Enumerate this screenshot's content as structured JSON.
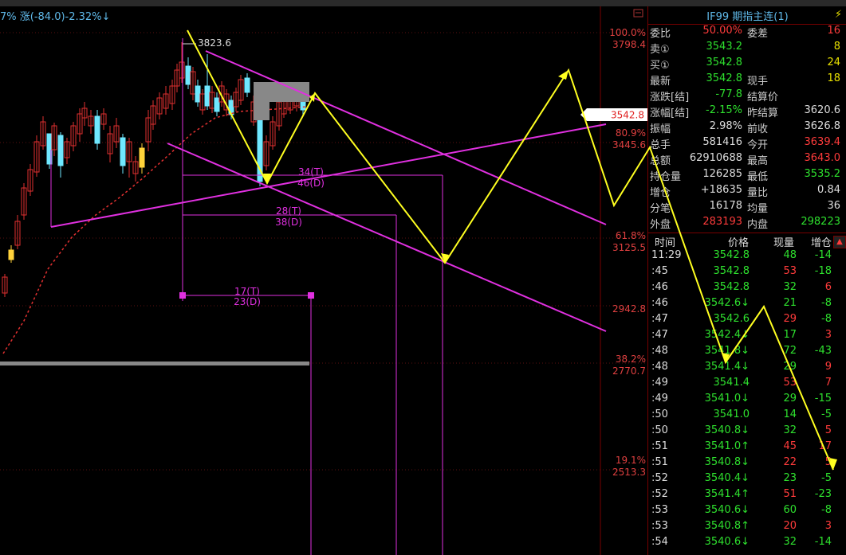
{
  "header": {
    "text": "7% 涨(-84.0)-2.32%↓"
  },
  "chart": {
    "high_label": "3823.6",
    "current_price_tag": "3542.8",
    "axis": [
      {
        "pct": "100.0%",
        "price": "3798.4"
      },
      {
        "pct": "80.9%",
        "price": "3445.6"
      },
      {
        "pct": "61.8%",
        "price": "3125.5"
      },
      {
        "pct": "",
        "price": "2942.8"
      },
      {
        "pct": "38.2%",
        "price": "2770.7"
      },
      {
        "pct": "19.1%",
        "price": "2513.3"
      }
    ],
    "cycles": [
      {
        "t": "34(T)",
        "d": "46(D)"
      },
      {
        "t": "28(T)",
        "d": "38(D)"
      },
      {
        "t": "17(T)",
        "d": "23(D)"
      }
    ]
  },
  "quote": {
    "title": "IF99 期指主连(1)",
    "rows": [
      {
        "l1": "委比",
        "v1": "50.00%",
        "c1": "red",
        "l2": "委差",
        "v2": "16",
        "c2": "red"
      },
      {
        "l1": "卖①",
        "v1": "3543.2",
        "c1": "green",
        "l2": "",
        "v2": "8",
        "c2": "yel"
      },
      {
        "l1": "买①",
        "v1": "3542.8",
        "c1": "green",
        "l2": "",
        "v2": "24",
        "c2": "yel"
      },
      {
        "l1": "最新",
        "v1": "3542.8",
        "c1": "green",
        "l2": "现手",
        "v2": "18",
        "c2": "yel"
      },
      {
        "l1": "涨跌[结]",
        "v1": "-77.8",
        "c1": "green",
        "l2": "结算价",
        "v2": "",
        "c2": "white"
      },
      {
        "l1": "涨幅[结]",
        "v1": "-2.15%",
        "c1": "green",
        "l2": "昨结算",
        "v2": "3620.6",
        "c2": "white"
      },
      {
        "l1": "振幅",
        "v1": "2.98%",
        "c1": "white",
        "l2": "前收",
        "v2": "3626.8",
        "c2": "white"
      },
      {
        "l1": "总手",
        "v1": "581416",
        "c1": "white",
        "l2": "今开",
        "v2": "3639.4",
        "c2": "red"
      },
      {
        "l1": "总额",
        "v1": "62910688",
        "c1": "white",
        "l2": "最高",
        "v2": "3643.0",
        "c2": "red"
      },
      {
        "l1": "持仓量",
        "v1": "126285",
        "c1": "white",
        "l2": "最低",
        "v2": "3535.2",
        "c2": "green"
      },
      {
        "l1": "增仓",
        "v1": "+18635",
        "c1": "white",
        "l2": "量比",
        "v2": "0.84",
        "c2": "white"
      },
      {
        "l1": "分笔",
        "v1": "16178",
        "c1": "white",
        "l2": "均量",
        "v2": "36",
        "c2": "white"
      },
      {
        "l1": "外盘",
        "v1": "283193",
        "c1": "red",
        "l2": "内盘",
        "v2": "298223",
        "c2": "green"
      }
    ]
  },
  "ticks": {
    "headers": {
      "time": "时间",
      "price": "价格",
      "vol": "现量",
      "oi": "增仓"
    },
    "rows": [
      {
        "time": "11:29",
        "price": "3542.8",
        "pc": "green",
        "vol": "48",
        "vc": "green",
        "oi": "-14",
        "oc": "green"
      },
      {
        "time": ":45",
        "price": "3542.8",
        "pc": "green",
        "vol": "53",
        "vc": "red",
        "oi": "-18",
        "oc": "green"
      },
      {
        "time": ":46",
        "price": "3542.8",
        "pc": "green",
        "vol": "32",
        "vc": "green",
        "oi": "6",
        "oc": "red"
      },
      {
        "time": ":46",
        "price": "3542.6↓",
        "pc": "green",
        "vol": "21",
        "vc": "green",
        "oi": "-8",
        "oc": "green"
      },
      {
        "time": ":47",
        "price": "3542.6",
        "pc": "green",
        "vol": "29",
        "vc": "red",
        "oi": "-8",
        "oc": "green"
      },
      {
        "time": ":47",
        "price": "3542.4↓",
        "pc": "green",
        "vol": "17",
        "vc": "green",
        "oi": "3",
        "oc": "red"
      },
      {
        "time": ":48",
        "price": "3541.8↓",
        "pc": "green",
        "vol": "72",
        "vc": "green",
        "oi": "-43",
        "oc": "green"
      },
      {
        "time": ":48",
        "price": "3541.4↓",
        "pc": "green",
        "vol": "29",
        "vc": "green",
        "oi": "9",
        "oc": "red"
      },
      {
        "time": ":49",
        "price": "3541.4",
        "pc": "green",
        "vol": "53",
        "vc": "red",
        "oi": "7",
        "oc": "red"
      },
      {
        "time": ":49",
        "price": "3541.0↓",
        "pc": "green",
        "vol": "29",
        "vc": "green",
        "oi": "-15",
        "oc": "green"
      },
      {
        "time": ":50",
        "price": "3541.0",
        "pc": "green",
        "vol": "14",
        "vc": "green",
        "oi": "-5",
        "oc": "green"
      },
      {
        "time": ":50",
        "price": "3540.8↓",
        "pc": "green",
        "vol": "32",
        "vc": "green",
        "oi": "5",
        "oc": "red"
      },
      {
        "time": ":51",
        "price": "3541.0↑",
        "pc": "green",
        "vol": "45",
        "vc": "red",
        "oi": "17",
        "oc": "red"
      },
      {
        "time": ":51",
        "price": "3540.8↓",
        "pc": "green",
        "vol": "22",
        "vc": "red",
        "oi": "5",
        "oc": "red"
      },
      {
        "time": ":52",
        "price": "3540.4↓",
        "pc": "green",
        "vol": "23",
        "vc": "green",
        "oi": "-5",
        "oc": "green"
      },
      {
        "time": ":52",
        "price": "3541.4↑",
        "pc": "green",
        "vol": "51",
        "vc": "red",
        "oi": "-23",
        "oc": "green"
      },
      {
        "time": ":53",
        "price": "3540.6↓",
        "pc": "green",
        "vol": "60",
        "vc": "green",
        "oi": "-8",
        "oc": "green"
      },
      {
        "time": ":53",
        "price": "3540.8↑",
        "pc": "green",
        "vol": "20",
        "vc": "red",
        "oi": "3",
        "oc": "red"
      },
      {
        "time": ":54",
        "price": "3540.6↓",
        "pc": "green",
        "vol": "32",
        "vc": "green",
        "oi": "-14",
        "oc": "green"
      }
    ]
  }
}
